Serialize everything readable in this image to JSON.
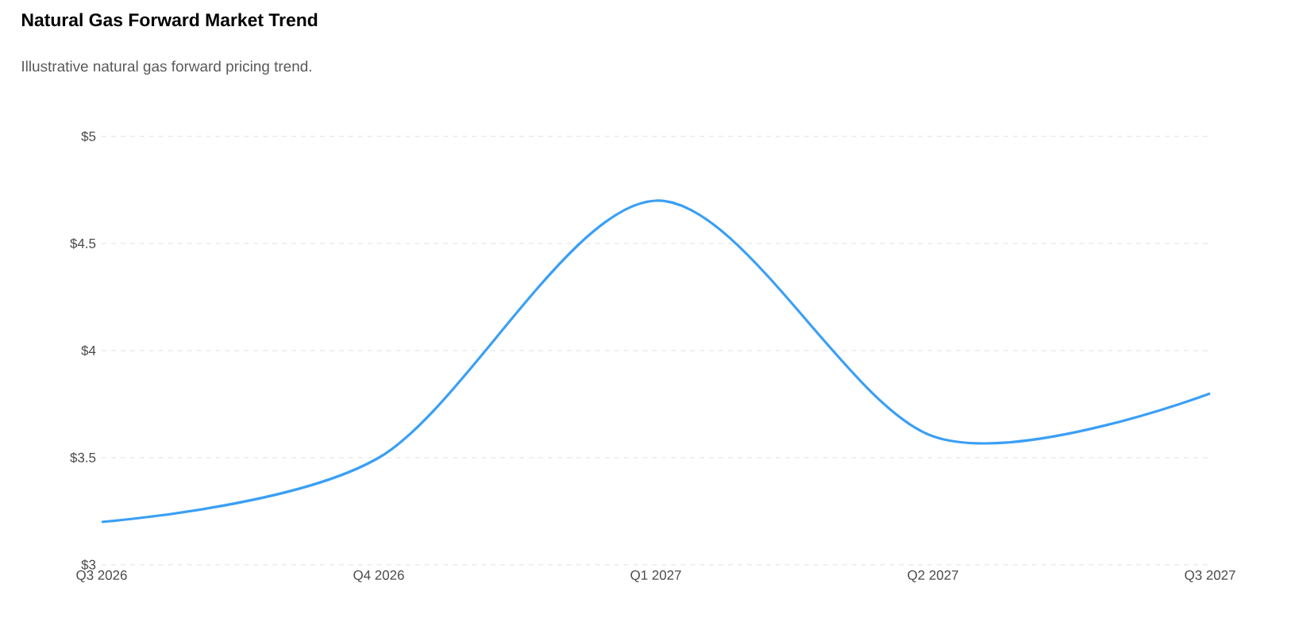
{
  "chart_data": {
    "type": "line",
    "title": "Natural Gas Forward Market Trend",
    "subtitle": "Illustrative natural gas forward pricing trend.",
    "categories": [
      "Q3 2026",
      "Q4 2026",
      "Q1 2027",
      "Q2 2027",
      "Q3 2027"
    ],
    "series": [
      {
        "color": "#3a9ff5",
        "values": [
          3.2,
          3.5,
          4.7,
          3.6,
          3.8
        ]
      }
    ],
    "ylim": [
      3,
      5
    ],
    "yticks": [
      {
        "value": 3,
        "label": "$3"
      },
      {
        "value": 3.5,
        "label": "$3.5"
      },
      {
        "value": 4,
        "label": "$4"
      },
      {
        "value": 4.5,
        "label": "$4.5"
      },
      {
        "value": 5,
        "label": "$5"
      }
    ],
    "grid": "y"
  }
}
